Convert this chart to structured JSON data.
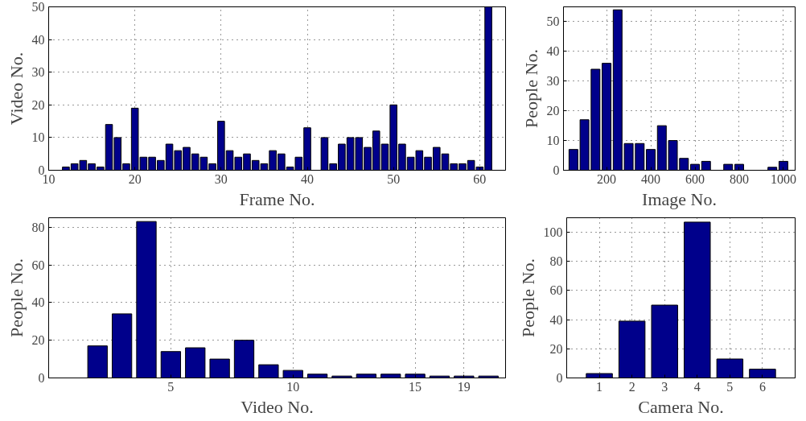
{
  "chart_data": [
    {
      "type": "bar",
      "xlabel": "Frame No.",
      "ylabel": "Video No.",
      "color": "#00008b",
      "grid": true,
      "xlim": [
        10,
        63
      ],
      "ylim": [
        0,
        50
      ],
      "xticks": [
        10,
        20,
        30,
        40,
        50,
        60
      ],
      "yticks": [
        0,
        10,
        20,
        30,
        40,
        50
      ],
      "x": [
        12,
        13,
        14,
        15,
        16,
        17,
        18,
        19,
        20,
        21,
        22,
        23,
        24,
        25,
        26,
        27,
        28,
        29,
        30,
        31,
        32,
        33,
        34,
        35,
        36,
        37,
        38,
        39,
        40,
        41,
        42,
        43,
        44,
        45,
        46,
        47,
        48,
        49,
        50,
        51,
        52,
        53,
        54,
        55,
        56,
        57,
        58,
        59,
        60,
        61
      ],
      "values": [
        1,
        2,
        3,
        2,
        1,
        14,
        10,
        2,
        19,
        4,
        4,
        3,
        8,
        6,
        7,
        5,
        4,
        2,
        15,
        6,
        4,
        5,
        3,
        2,
        6,
        5,
        1,
        4,
        13,
        0,
        10,
        2,
        8,
        10,
        10,
        7,
        12,
        8,
        20,
        8,
        4,
        6,
        4,
        7,
        5,
        2,
        2,
        3,
        1,
        50
      ]
    },
    {
      "type": "bar",
      "xlabel": "Image No.",
      "ylabel": "People No.",
      "color": "#00008b",
      "grid": true,
      "xlim": [
        5,
        1053
      ],
      "ylim": [
        0,
        55
      ],
      "xticks": [
        200,
        400,
        600,
        800,
        1000
      ],
      "yticks": [
        0,
        10,
        20,
        30,
        40,
        50
      ],
      "x": [
        50,
        100,
        150,
        200,
        250,
        300,
        350,
        400,
        450,
        500,
        550,
        600,
        650,
        700,
        750,
        800,
        850,
        900,
        950,
        1000
      ],
      "values": [
        7,
        17,
        34,
        36,
        54,
        9,
        9,
        7,
        15,
        10,
        4,
        2,
        3,
        0,
        2,
        2,
        0,
        0,
        1,
        3
      ]
    },
    {
      "type": "bar",
      "xlabel": "Video No.",
      "ylabel": "People No.",
      "color": "#00008b",
      "grid": true,
      "ylim": [
        0,
        85
      ],
      "yticks": [
        0,
        20,
        40,
        60,
        80
      ],
      "categories": [
        null,
        null,
        null,
        null,
        "5",
        null,
        null,
        null,
        null,
        "10",
        null,
        null,
        null,
        null,
        "15",
        null,
        "19",
        null
      ],
      "values": [
        0,
        17,
        34,
        83,
        14,
        16,
        10,
        20,
        7,
        4,
        2,
        1,
        2,
        2,
        2,
        1,
        1,
        1
      ]
    },
    {
      "type": "bar",
      "xlabel": "Camera No.",
      "ylabel": "People No.",
      "color": "#00008b",
      "grid": true,
      "xlim": [
        0,
        7
      ],
      "ylim": [
        0,
        110
      ],
      "xticks": [
        1,
        2,
        3,
        4,
        5,
        6
      ],
      "yticks": [
        0,
        20,
        40,
        60,
        80,
        100
      ],
      "x": [
        1,
        2,
        3,
        4,
        5,
        6
      ],
      "values": [
        3,
        39,
        50,
        107,
        13,
        6
      ]
    }
  ]
}
